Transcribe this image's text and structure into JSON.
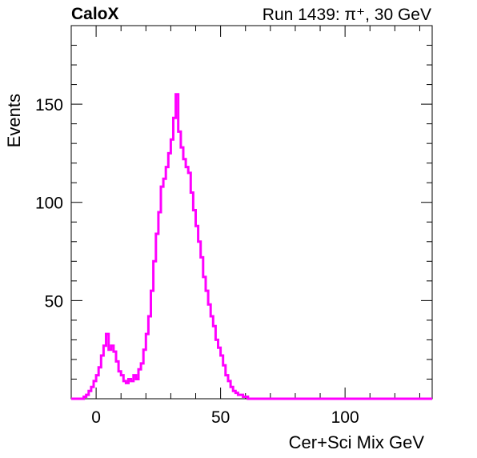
{
  "header": {
    "left": "CaloX",
    "right": "Run 1439: π⁺, 30 GeV"
  },
  "chart_data": {
    "type": "line",
    "style": "step-histogram",
    "xlabel": "Cer+Sci Mix GeV",
    "ylabel": "Events",
    "xlim": [
      -10,
      135
    ],
    "ylim": [
      0,
      190
    ],
    "x_ticks": [
      0,
      50,
      100
    ],
    "y_ticks": [
      50,
      100,
      150
    ],
    "line_color": "#ff00ff",
    "axis_color": "#000000",
    "grid": false,
    "legend": "none",
    "series": [
      {
        "x": [
          -10,
          -9,
          -8,
          -7,
          -6,
          -5,
          -4,
          -3,
          -2,
          -1,
          0,
          1,
          2,
          3,
          4,
          5,
          6,
          7,
          8,
          9,
          10,
          11,
          12,
          13,
          14,
          15,
          16,
          17,
          18,
          19,
          20,
          21,
          22,
          23,
          24,
          25,
          26,
          27,
          28,
          29,
          30,
          31,
          32,
          33,
          34,
          35,
          36,
          37,
          38,
          39,
          40,
          41,
          42,
          43,
          44,
          45,
          46,
          47,
          48,
          49,
          50,
          51,
          52,
          53,
          54,
          55,
          56,
          57,
          58,
          59,
          60,
          61,
          62,
          63,
          64,
          65,
          66,
          67,
          68,
          69,
          70,
          71,
          72,
          73,
          74,
          75,
          76,
          77,
          78,
          79,
          80,
          81,
          82,
          83,
          84,
          85,
          90,
          100,
          110,
          120,
          130,
          135
        ],
        "y": [
          0,
          0,
          0,
          0,
          0,
          1,
          2,
          4,
          6,
          9,
          12,
          16,
          22,
          27,
          33,
          25,
          27,
          24,
          19,
          14,
          12,
          9,
          8,
          10,
          9,
          12,
          10,
          15,
          18,
          25,
          33,
          42,
          55,
          70,
          84,
          95,
          108,
          112,
          118,
          125,
          132,
          143,
          155,
          136,
          128,
          122,
          118,
          115,
          105,
          96,
          88,
          80,
          72,
          62,
          55,
          48,
          42,
          37,
          30,
          26,
          22,
          17,
          12,
          9,
          6,
          4,
          3,
          2,
          2,
          1,
          1,
          0,
          0,
          0,
          0,
          0,
          0,
          0,
          0,
          0,
          0,
          0,
          0,
          0,
          0,
          0,
          0,
          0,
          0,
          0,
          0,
          0,
          0,
          0,
          0,
          0,
          0,
          0,
          0,
          0,
          0,
          0
        ]
      }
    ]
  }
}
